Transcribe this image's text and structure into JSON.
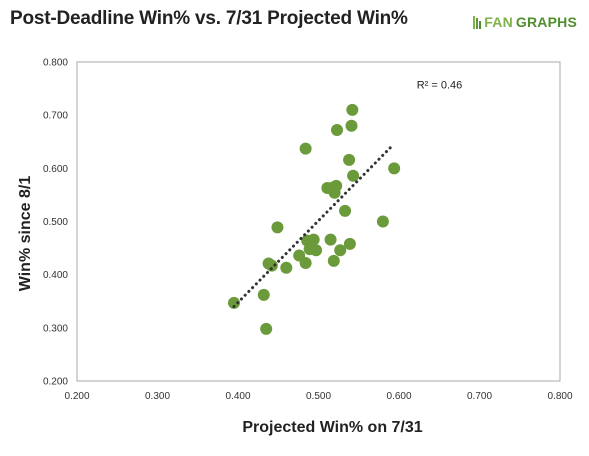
{
  "title": "Post-Deadline Win% vs. 7/31 Projected Win%",
  "brand": {
    "prefix": "FAN",
    "suffix": "GRAPHS"
  },
  "colors": {
    "point": "#6a9a3a",
    "trend": "#333333",
    "border": "#aaaaaa"
  },
  "chart_data": {
    "type": "scatter",
    "xlabel": "Projected Win% on 7/31",
    "ylabel": "Win% since 8/1",
    "xlim": [
      0.2,
      0.8
    ],
    "ylim": [
      0.2,
      0.8
    ],
    "x_ticks": [
      0.2,
      0.3,
      0.4,
      0.5,
      0.6,
      0.7,
      0.8
    ],
    "y_ticks": [
      0.2,
      0.3,
      0.4,
      0.5,
      0.6,
      0.7,
      0.8
    ],
    "x_tick_labels": [
      "0.200",
      "0.300",
      "0.400",
      "0.500",
      "0.600",
      "0.700",
      "0.800"
    ],
    "y_tick_labels": [
      "0.200",
      "0.300",
      "0.400",
      "0.500",
      "0.600",
      "0.700",
      "0.800"
    ],
    "grid": false,
    "annotation": {
      "label": "R² = 0.46",
      "x": 0.622,
      "y": 0.75
    },
    "trendline": {
      "x": [
        0.395,
        0.59
      ],
      "y": [
        0.34,
        0.64
      ],
      "style": "dotted"
    },
    "points": [
      {
        "x": 0.395,
        "y": 0.347
      },
      {
        "x": 0.432,
        "y": 0.362
      },
      {
        "x": 0.435,
        "y": 0.298
      },
      {
        "x": 0.438,
        "y": 0.421
      },
      {
        "x": 0.442,
        "y": 0.417
      },
      {
        "x": 0.449,
        "y": 0.489
      },
      {
        "x": 0.46,
        "y": 0.413
      },
      {
        "x": 0.476,
        "y": 0.436
      },
      {
        "x": 0.484,
        "y": 0.637
      },
      {
        "x": 0.484,
        "y": 0.422
      },
      {
        "x": 0.486,
        "y": 0.464
      },
      {
        "x": 0.489,
        "y": 0.448
      },
      {
        "x": 0.494,
        "y": 0.466
      },
      {
        "x": 0.497,
        "y": 0.446
      },
      {
        "x": 0.511,
        "y": 0.563
      },
      {
        "x": 0.515,
        "y": 0.466
      },
      {
        "x": 0.518,
        "y": 0.564
      },
      {
        "x": 0.519,
        "y": 0.426
      },
      {
        "x": 0.52,
        "y": 0.554
      },
      {
        "x": 0.522,
        "y": 0.567
      },
      {
        "x": 0.523,
        "y": 0.672
      },
      {
        "x": 0.527,
        "y": 0.446
      },
      {
        "x": 0.533,
        "y": 0.52
      },
      {
        "x": 0.538,
        "y": 0.616
      },
      {
        "x": 0.539,
        "y": 0.458
      },
      {
        "x": 0.541,
        "y": 0.68
      },
      {
        "x": 0.542,
        "y": 0.71
      },
      {
        "x": 0.543,
        "y": 0.586
      },
      {
        "x": 0.58,
        "y": 0.5
      },
      {
        "x": 0.594,
        "y": 0.6
      }
    ]
  }
}
